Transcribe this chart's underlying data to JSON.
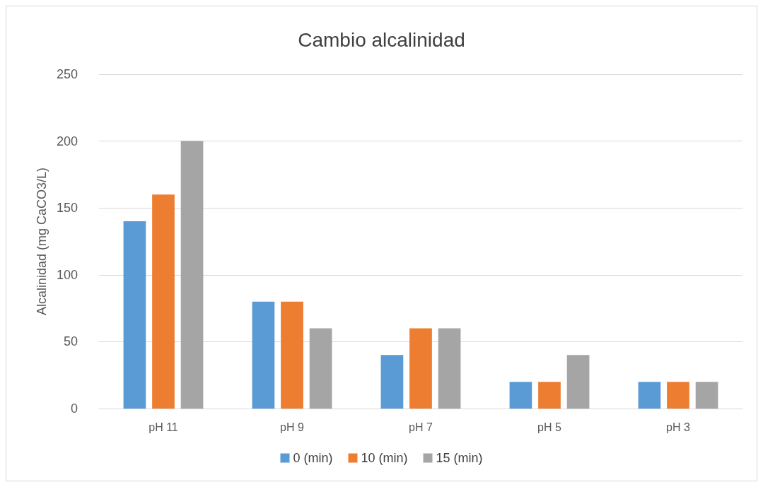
{
  "chart_data": {
    "type": "bar",
    "title": "Cambio alcalinidad",
    "ylabel": "Alcalinidad (mg CaCO3/L)",
    "categories": [
      "pH 11",
      "pH 9",
      "pH 7",
      "pH 5",
      "pH 3"
    ],
    "series": [
      {
        "name": "0 (min)",
        "color": "#5b9bd5",
        "values": [
          140,
          80,
          40,
          20,
          20
        ]
      },
      {
        "name": "10 (min)",
        "color": "#ed7d31",
        "values": [
          160,
          80,
          60,
          20,
          20
        ]
      },
      {
        "name": "15 (min)",
        "color": "#a5a5a5",
        "values": [
          200,
          60,
          60,
          40,
          20
        ]
      }
    ],
    "ylim": [
      0,
      250
    ],
    "yticks": [
      0,
      50,
      100,
      150,
      200,
      250
    ],
    "grid": "y",
    "legend": "bottom"
  }
}
